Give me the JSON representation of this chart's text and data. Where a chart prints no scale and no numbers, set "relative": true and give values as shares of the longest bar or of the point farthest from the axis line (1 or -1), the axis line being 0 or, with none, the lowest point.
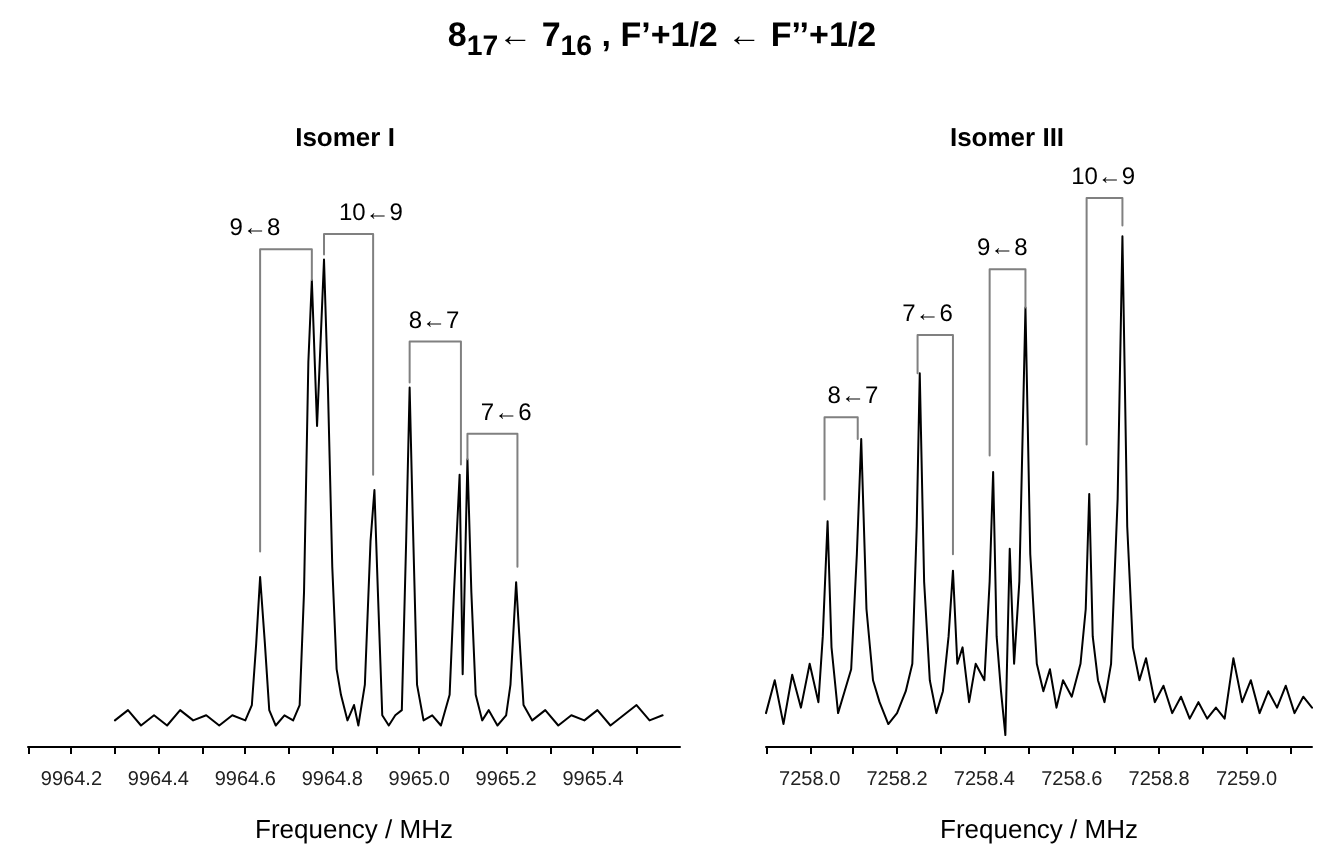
{
  "chart_data": [
    {
      "type": "line",
      "title": "8$_{17}$← 7$_{16}$ , F’+1/2 ← F’’+1/2",
      "subtitle": "Isomer I",
      "xlabel": "Frequency / MHz",
      "relative": true,
      "tick_labels": "x",
      "marker": "none",
      "line_style": "solid",
      "xlim": [
        9964.1,
        9965.6
      ],
      "xticks": [
        {
          "value": 9964.1,
          "label": null
        },
        9964.2,
        {
          "value": 9964.3,
          "label": null
        },
        9964.4,
        {
          "value": 9964.5,
          "label": null
        },
        9964.6,
        {
          "value": 9964.7,
          "label": null
        },
        9964.8,
        {
          "value": 9964.9,
          "label": null
        },
        {
          "value": 9965.0,
          "label": "9965.0"
        },
        {
          "value": 9965.1,
          "label": null
        },
        9965.2,
        {
          "value": 9965.3,
          "label": null
        },
        9965.4,
        {
          "value": 9965.5,
          "label": null
        }
      ],
      "series": [
        {
          "color": "#000000",
          "x": [
            9964.3,
            9964.33,
            9964.36,
            9964.39,
            9964.42,
            9964.45,
            9964.48,
            9964.51,
            9964.54,
            9964.57,
            9964.6,
            9964.615,
            9964.625,
            9964.634,
            9964.645,
            9964.655,
            9964.67,
            9964.69,
            9964.71,
            9964.725,
            9964.735,
            9964.745,
            9964.753,
            9964.765,
            9964.781,
            9964.79,
            9964.8,
            9964.81,
            9964.82,
            9964.835,
            9964.85,
            9964.86,
            9964.875,
            9964.888,
            9964.897,
            9964.905,
            9964.915,
            9964.93,
            9964.945,
            9964.96,
            9964.97,
            9964.978,
            9964.985,
            9964.995,
            9965.01,
            9965.03,
            9965.05,
            9965.07,
            9965.08,
            9965.093,
            9965.1,
            9965.111,
            9965.12,
            9965.13,
            9965.145,
            9965.16,
            9965.18,
            9965.2,
            9965.21,
            9965.223,
            9965.23,
            9965.24,
            9965.26,
            9965.29,
            9965.32,
            9965.35,
            9965.38,
            9965.41,
            9965.44,
            9965.47,
            9965.5,
            9965.53,
            9965.56
          ],
          "values": [
            0.05,
            0.07,
            0.04,
            0.06,
            0.04,
            0.07,
            0.05,
            0.06,
            0.04,
            0.06,
            0.05,
            0.08,
            0.2,
            0.33,
            0.2,
            0.07,
            0.04,
            0.06,
            0.05,
            0.08,
            0.3,
            0.75,
            0.91,
            0.625,
            0.95,
            0.7,
            0.35,
            0.15,
            0.1,
            0.05,
            0.08,
            0.04,
            0.12,
            0.4,
            0.5,
            0.3,
            0.06,
            0.04,
            0.06,
            0.07,
            0.4,
            0.7,
            0.45,
            0.12,
            0.05,
            0.06,
            0.04,
            0.1,
            0.3,
            0.53,
            0.14,
            0.56,
            0.3,
            0.1,
            0.05,
            0.07,
            0.04,
            0.06,
            0.12,
            0.32,
            0.22,
            0.08,
            0.05,
            0.07,
            0.04,
            0.06,
            0.05,
            0.07,
            0.04,
            0.06,
            0.08,
            0.05,
            0.06
          ]
        },
        {
          "color": "#808080",
          "x": [
            9964.634,
            9964.634,
            9964.753,
            9964.753
          ],
          "values": [
            0.38,
            0.97,
            0.97,
            0.91
          ]
        },
        {
          "color": "#808080",
          "x": [
            9964.781,
            9964.781,
            9964.894,
            9964.894
          ],
          "values": [
            0.96,
            1.0,
            1.0,
            0.53
          ]
        },
        {
          "color": "#808080",
          "x": [
            9964.978,
            9964.978,
            9965.096,
            9965.096
          ],
          "values": [
            0.71,
            0.79,
            0.79,
            0.55
          ]
        },
        {
          "color": "#808080",
          "x": [
            9965.111,
            9965.111,
            9965.226,
            9965.226
          ],
          "values": [
            0.56,
            0.61,
            0.61,
            0.35
          ]
        }
      ],
      "annotations": [
        {
          "text": "9←8",
          "x": 9964.622,
          "y": 0.97
        },
        {
          "text": "10←9",
          "x": 9964.889,
          "y": 1.0
        },
        {
          "text": "8←7",
          "x": 9965.034,
          "y": 0.79
        },
        {
          "text": "7←6",
          "x": 9965.2,
          "y": 0.61
        }
      ]
    },
    {
      "type": "line",
      "subtitle": "Isomer III",
      "xlabel": "Frequency / MHz",
      "relative": true,
      "tick_labels": "x",
      "marker": "none",
      "line_style": "solid",
      "xlim": [
        7257.9,
        7259.15
      ],
      "xticks": [
        {
          "value": 7257.9,
          "label": null
        },
        {
          "value": 7258.0,
          "label": "7258.0"
        },
        {
          "value": 7258.1,
          "label": null
        },
        7258.2,
        {
          "value": 7258.3,
          "label": null
        },
        7258.4,
        {
          "value": 7258.5,
          "label": null
        },
        7258.6,
        {
          "value": 7258.7,
          "label": null
        },
        7258.8,
        {
          "value": 7258.9,
          "label": null
        },
        {
          "value": 7259.0,
          "label": "7259.0"
        },
        {
          "value": 7259.1,
          "label": null
        }
      ],
      "series": [
        {
          "color": "#000000",
          "x": [
            7257.9,
            7257.92,
            7257.94,
            7257.96,
            7257.98,
            7258.0,
            7258.02,
            7258.03,
            7258.041,
            7258.05,
            7258.065,
            7258.08,
            7258.095,
            7258.108,
            7258.118,
            7258.13,
            7258.145,
            7258.16,
            7258.18,
            7258.2,
            7258.22,
            7258.235,
            7258.245,
            7258.252,
            7258.262,
            7258.275,
            7258.29,
            7258.305,
            7258.318,
            7258.328,
            7258.338,
            7258.35,
            7258.365,
            7258.38,
            7258.4,
            7258.412,
            7258.42,
            7258.428,
            7258.438,
            7258.448,
            7258.458,
            7258.468,
            7258.48,
            7258.494,
            7258.505,
            7258.52,
            7258.535,
            7258.55,
            7258.565,
            7258.58,
            7258.6,
            7258.62,
            7258.632,
            7258.64,
            7258.648,
            7258.66,
            7258.675,
            7258.69,
            7258.705,
            7258.716,
            7258.727,
            7258.74,
            7258.755,
            7258.77,
            7258.79,
            7258.81,
            7258.83,
            7258.85,
            7258.87,
            7258.89,
            7258.91,
            7258.93,
            7258.95,
            7258.97,
            7258.99,
            7259.01,
            7259.03,
            7259.05,
            7259.07,
            7259.09,
            7259.11,
            7259.13,
            7259.15
          ],
          "values": [
            0.06,
            0.12,
            0.04,
            0.13,
            0.07,
            0.15,
            0.08,
            0.2,
            0.41,
            0.18,
            0.06,
            0.1,
            0.14,
            0.35,
            0.56,
            0.25,
            0.12,
            0.08,
            0.04,
            0.06,
            0.1,
            0.15,
            0.4,
            0.68,
            0.3,
            0.12,
            0.06,
            0.1,
            0.2,
            0.32,
            0.15,
            0.18,
            0.08,
            0.15,
            0.12,
            0.3,
            0.5,
            0.2,
            0.1,
            0.02,
            0.36,
            0.15,
            0.3,
            0.8,
            0.35,
            0.15,
            0.1,
            0.14,
            0.07,
            0.12,
            0.09,
            0.15,
            0.25,
            0.46,
            0.2,
            0.12,
            0.08,
            0.15,
            0.45,
            0.93,
            0.4,
            0.18,
            0.12,
            0.16,
            0.08,
            0.11,
            0.06,
            0.09,
            0.05,
            0.08,
            0.05,
            0.07,
            0.05,
            0.16,
            0.08,
            0.12,
            0.06,
            0.1,
            0.07,
            0.11,
            0.06,
            0.09,
            0.07
          ]
        },
        {
          "color": "#808080",
          "x": [
            7258.034,
            7258.034,
            7258.11,
            7258.11
          ],
          "values": [
            0.45,
            0.6,
            0.6,
            0.56
          ]
        },
        {
          "color": "#808080",
          "x": [
            7258.247,
            7258.247,
            7258.328,
            7258.328
          ],
          "values": [
            0.68,
            0.75,
            0.75,
            0.35
          ]
        },
        {
          "color": "#808080",
          "x": [
            7258.412,
            7258.412,
            7258.494,
            7258.494
          ],
          "values": [
            0.53,
            0.87,
            0.87,
            0.8
          ]
        },
        {
          "color": "#808080",
          "x": [
            7258.634,
            7258.634,
            7258.716,
            7258.716
          ],
          "values": [
            0.55,
            1.0,
            1.0,
            0.95
          ]
        }
      ],
      "annotations": [
        {
          "text": "8←7",
          "x": 7258.099,
          "y": 0.6
        },
        {
          "text": "7←6",
          "x": 7258.27,
          "y": 0.75
        },
        {
          "text": "9←8",
          "x": 7258.441,
          "y": 0.87
        },
        {
          "text": "10←9",
          "x": 7258.672,
          "y": 1.0
        }
      ]
    }
  ]
}
